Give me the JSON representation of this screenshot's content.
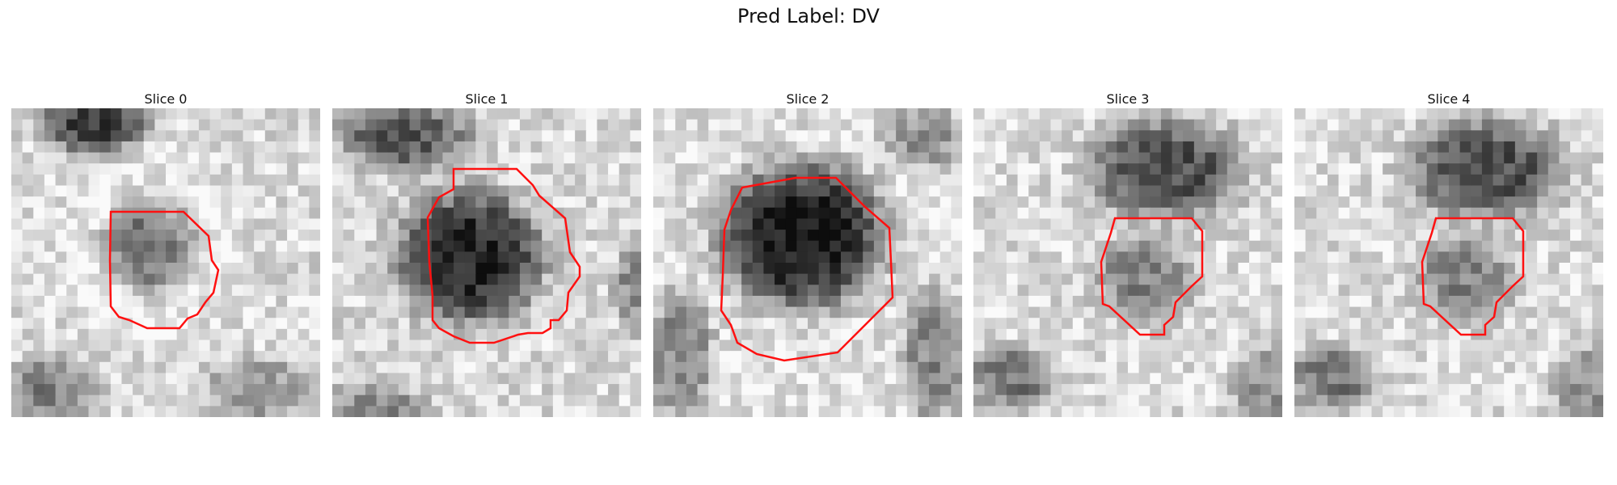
{
  "figure": {
    "title": "Pred Label: DV",
    "panels": [
      {
        "label": "Slice 0"
      },
      {
        "label": "Slice 1"
      },
      {
        "label": "Slice 2"
      },
      {
        "label": "Slice 3"
      },
      {
        "label": "Slice 4"
      }
    ]
  }
}
